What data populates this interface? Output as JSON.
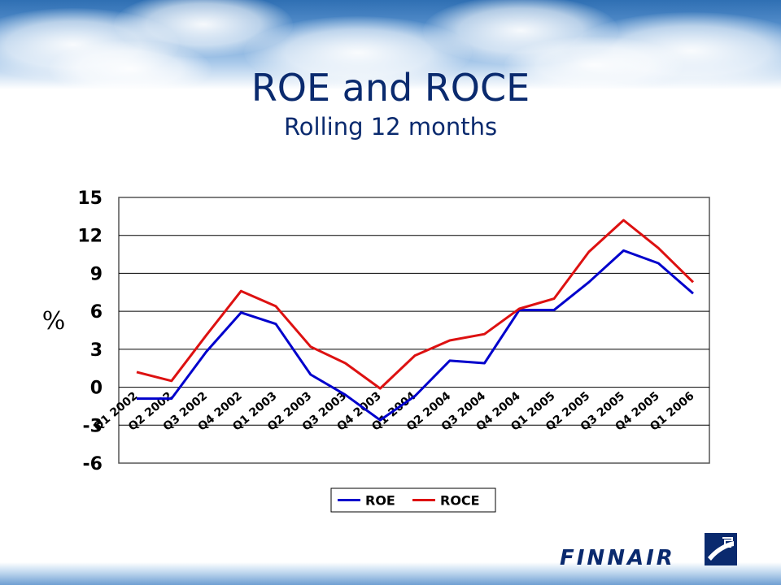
{
  "header": {
    "title": "ROE and ROCE",
    "subtitle": "Rolling 12 months"
  },
  "brand": {
    "wordmark": "FINNAIR",
    "logo_icon": "finnair-f-logo-icon",
    "color": "#0a2a6e"
  },
  "chart_data": {
    "type": "line",
    "title": "",
    "xlabel": "",
    "ylabel": "%",
    "ylim": [
      -6,
      15
    ],
    "yticks": [
      15,
      12,
      9,
      6,
      3,
      0,
      -3,
      -6
    ],
    "grid": true,
    "legend_position": "bottom",
    "categories": [
      "Q1 2002",
      "Q2 2002",
      "Q3 2002",
      "Q4 2002",
      "Q1 2003",
      "Q2 2003",
      "Q3 2003",
      "Q4 2003",
      "Q1 2004",
      "Q2 2004",
      "Q3 2004",
      "Q4 2004",
      "Q1 2005",
      "Q2 2005",
      "Q3 2005",
      "Q4 2005",
      "Q1 2006"
    ],
    "series": [
      {
        "name": "ROE",
        "color": "#0000cc",
        "values": [
          -0.9,
          -0.9,
          2.8,
          5.9,
          5.0,
          1.0,
          -0.6,
          -2.6,
          -0.7,
          2.1,
          1.9,
          6.1,
          6.1,
          8.3,
          10.8,
          9.8,
          7.4
        ]
      },
      {
        "name": "ROCE",
        "color": "#dd1111",
        "values": [
          1.2,
          0.5,
          4.1,
          7.6,
          6.4,
          3.2,
          1.9,
          -0.1,
          2.5,
          3.7,
          4.2,
          6.2,
          7.0,
          10.7,
          13.2,
          11.0,
          8.3
        ]
      }
    ]
  }
}
